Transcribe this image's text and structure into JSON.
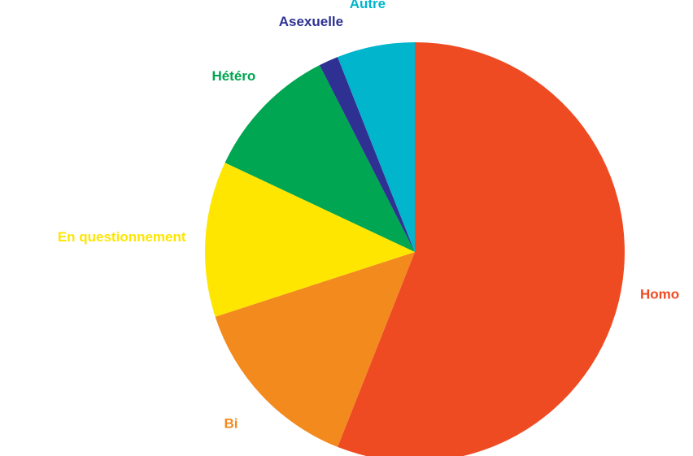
{
  "chart_data": {
    "type": "pie",
    "categories": [
      "Homo",
      "Bi",
      "En questionnement",
      "Hétéro",
      "Asexuelle",
      "Autre"
    ],
    "values": [
      56,
      14,
      12,
      10.5,
      1.5,
      6
    ],
    "colors": [
      "#ef4b23",
      "#f28a1e",
      "#fee600",
      "#00a651",
      "#2e3192",
      "#00b5cc"
    ]
  }
}
